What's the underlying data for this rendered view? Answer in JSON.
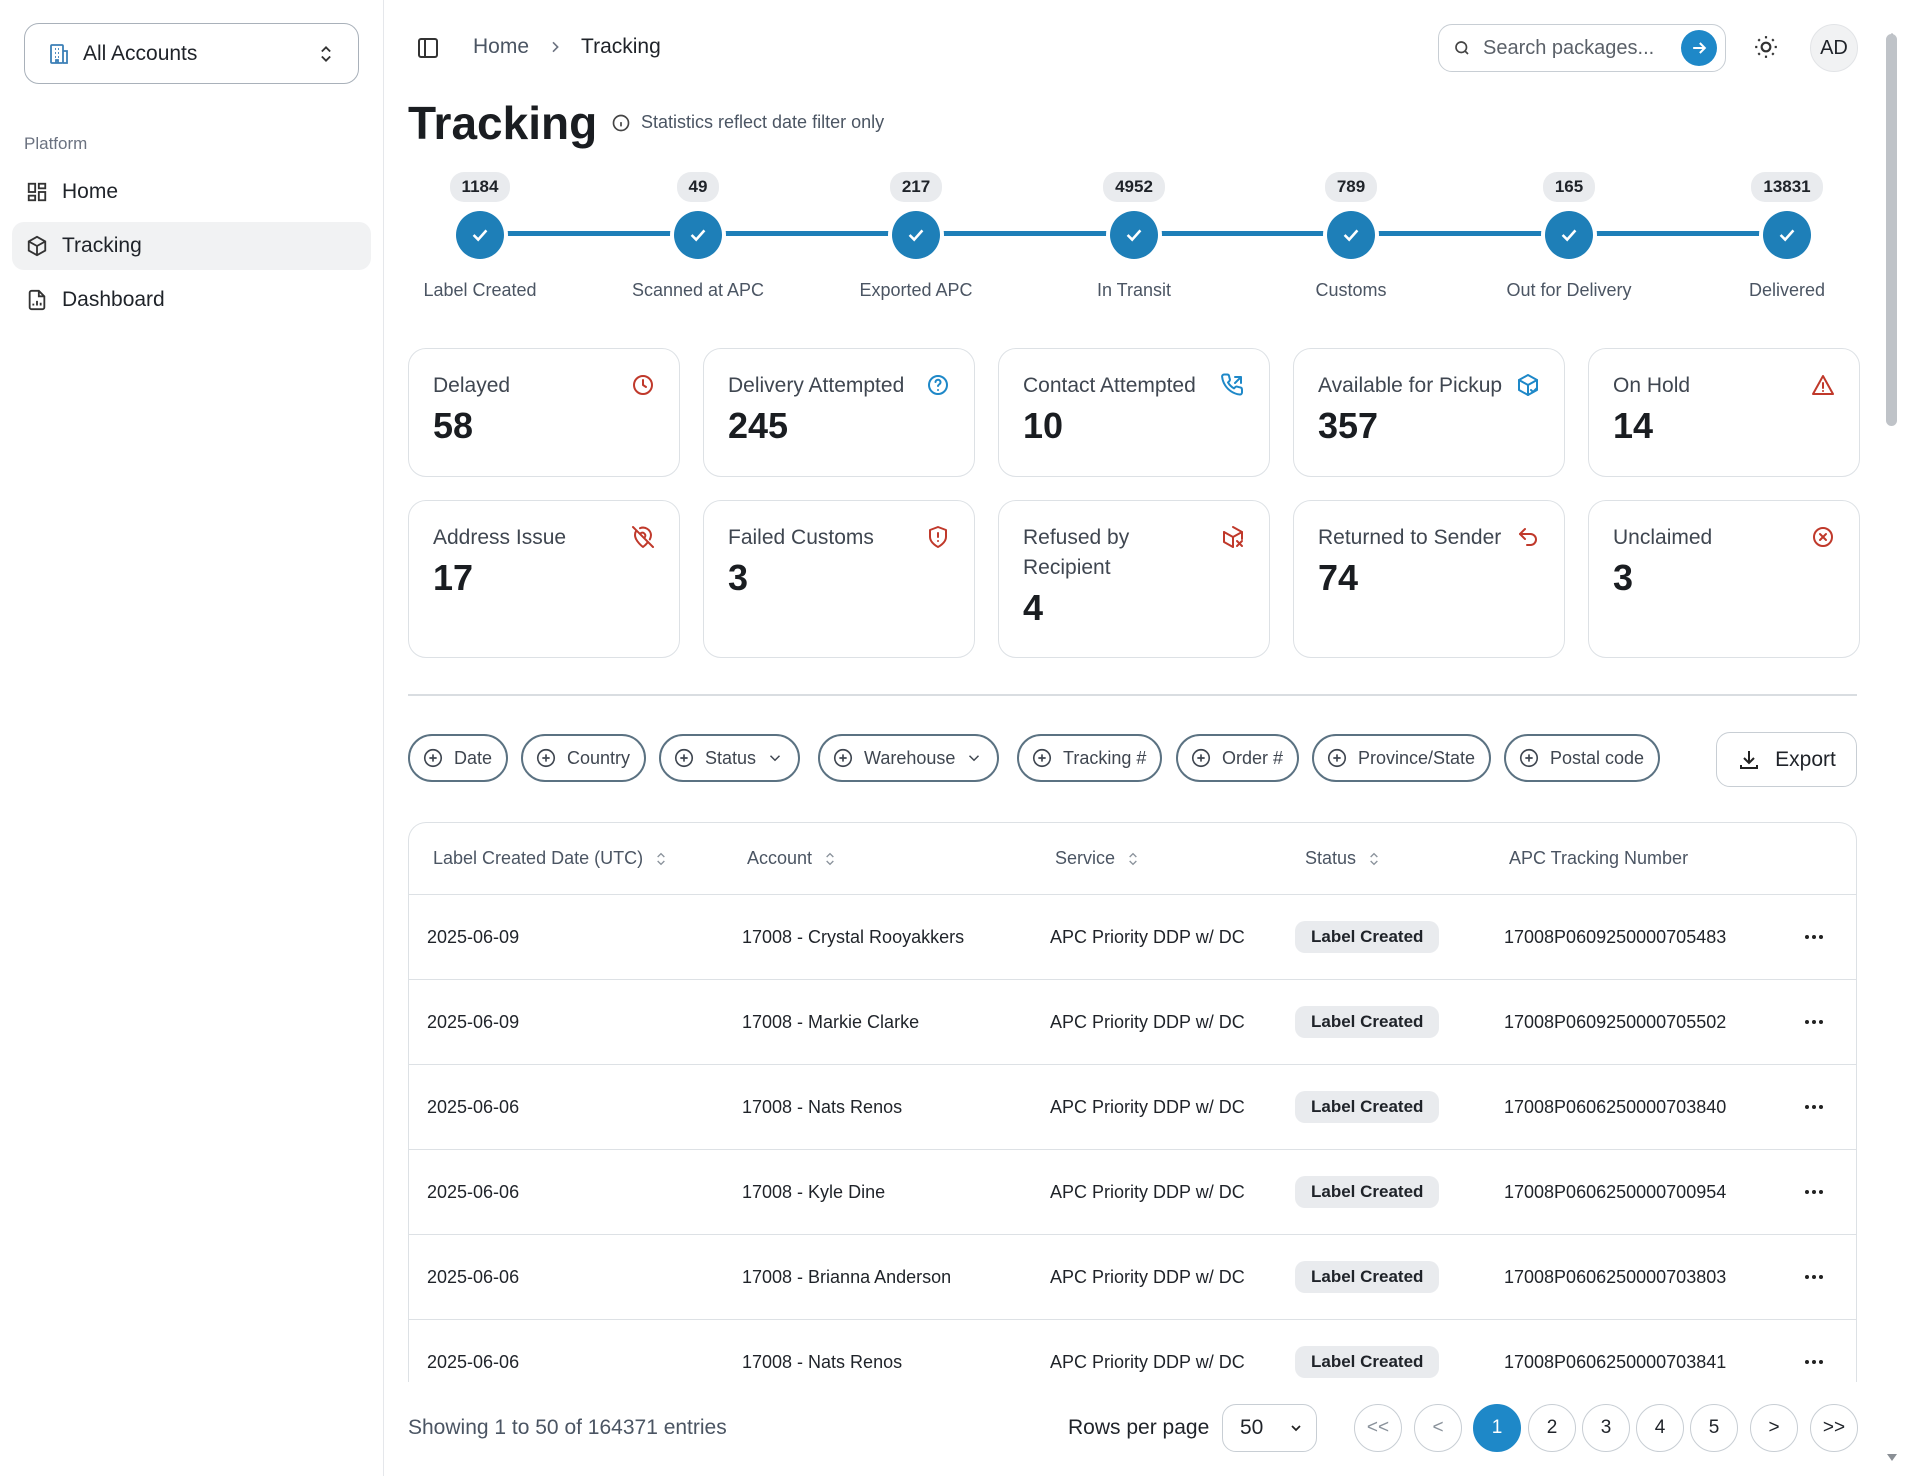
{
  "sidebar": {
    "account_selector": "All Accounts",
    "section_label": "Platform",
    "items": [
      {
        "label": "Home",
        "icon": "layout-grid-icon"
      },
      {
        "label": "Tracking",
        "icon": "package-icon",
        "active": true
      },
      {
        "label": "Dashboard",
        "icon": "file-chart-icon"
      }
    ]
  },
  "header": {
    "breadcrumb_home": "Home",
    "breadcrumb_current": "Tracking",
    "search_placeholder": "Search packages...",
    "avatar_initials": "AD"
  },
  "page": {
    "title": "Tracking",
    "note": "Statistics reflect date filter only"
  },
  "progress": [
    {
      "count": "1184",
      "label": "Label Created"
    },
    {
      "count": "49",
      "label": "Scanned at APC"
    },
    {
      "count": "217",
      "label": "Exported APC"
    },
    {
      "count": "4952",
      "label": "In Transit"
    },
    {
      "count": "789",
      "label": "Customs"
    },
    {
      "count": "165",
      "label": "Out for Delivery"
    },
    {
      "count": "13831",
      "label": "Delivered"
    }
  ],
  "stats": [
    {
      "label": "Delayed",
      "value": "58",
      "icon": "clock-icon",
      "color": "#c0392b"
    },
    {
      "label": "Delivery Attempted",
      "value": "245",
      "icon": "help-circle-icon",
      "color": "#1e88c8"
    },
    {
      "label": "Contact Attempted",
      "value": "10",
      "icon": "phone-forward-icon",
      "color": "#1e88c8"
    },
    {
      "label": "Available for Pickup",
      "value": "357",
      "icon": "package-check-icon",
      "color": "#1e88c8"
    },
    {
      "label": "On Hold",
      "value": "14",
      "icon": "alert-triangle-icon",
      "color": "#c0392b"
    },
    {
      "label": "Address Issue",
      "value": "17",
      "icon": "map-pin-off-icon",
      "color": "#c0392b"
    },
    {
      "label": "Failed Customs",
      "value": "3",
      "icon": "shield-alert-icon",
      "color": "#c0392b"
    },
    {
      "label": "Refused by Recipient",
      "value": "4",
      "icon": "package-x-icon",
      "color": "#c0392b"
    },
    {
      "label": "Returned to Sender",
      "value": "74",
      "icon": "undo-icon",
      "color": "#c0392b"
    },
    {
      "label": "Unclaimed",
      "value": "3",
      "icon": "x-circle-icon",
      "color": "#c0392b"
    }
  ],
  "filters": [
    "Date",
    "Country",
    "Status",
    "Warehouse",
    "Tracking #",
    "Order #",
    "Province/State",
    "Postal code"
  ],
  "export_label": "Export",
  "table": {
    "columns": [
      "Label Created Date (UTC)",
      "Account",
      "Service",
      "Status",
      "APC Tracking Number"
    ],
    "rows": [
      {
        "date": "2025-06-09",
        "account": "17008 - Crystal Rooyakkers",
        "service": "APC Priority DDP w/ DC",
        "status": "Label Created",
        "tracking": "17008P0609250000705483"
      },
      {
        "date": "2025-06-09",
        "account": "17008 - Markie Clarke",
        "service": "APC Priority DDP w/ DC",
        "status": "Label Created",
        "tracking": "17008P0609250000705502"
      },
      {
        "date": "2025-06-06",
        "account": "17008 - Nats Renos",
        "service": "APC Priority DDP w/ DC",
        "status": "Label Created",
        "tracking": "17008P0606250000703840"
      },
      {
        "date": "2025-06-06",
        "account": "17008 - Kyle Dine",
        "service": "APC Priority DDP w/ DC",
        "status": "Label Created",
        "tracking": "17008P0606250000700954"
      },
      {
        "date": "2025-06-06",
        "account": "17008 - Brianna Anderson",
        "service": "APC Priority DDP w/ DC",
        "status": "Label Created",
        "tracking": "17008P0606250000703803"
      },
      {
        "date": "2025-06-06",
        "account": "17008 - Nats Renos",
        "service": "APC Priority DDP w/ DC",
        "status": "Label Created",
        "tracking": "17008P0606250000703841"
      }
    ]
  },
  "footer": {
    "showing": "Showing 1 to 50 of 164371 entries",
    "rows_per_page_label": "Rows per page",
    "rows_per_page": "50",
    "first": "<<",
    "prev": "<",
    "pages": [
      "1",
      "2",
      "3",
      "4",
      "5"
    ],
    "next": ">",
    "last": ">>",
    "current_page": "1"
  },
  "colors": {
    "accent": "#1e88c8",
    "danger": "#c0392b"
  }
}
